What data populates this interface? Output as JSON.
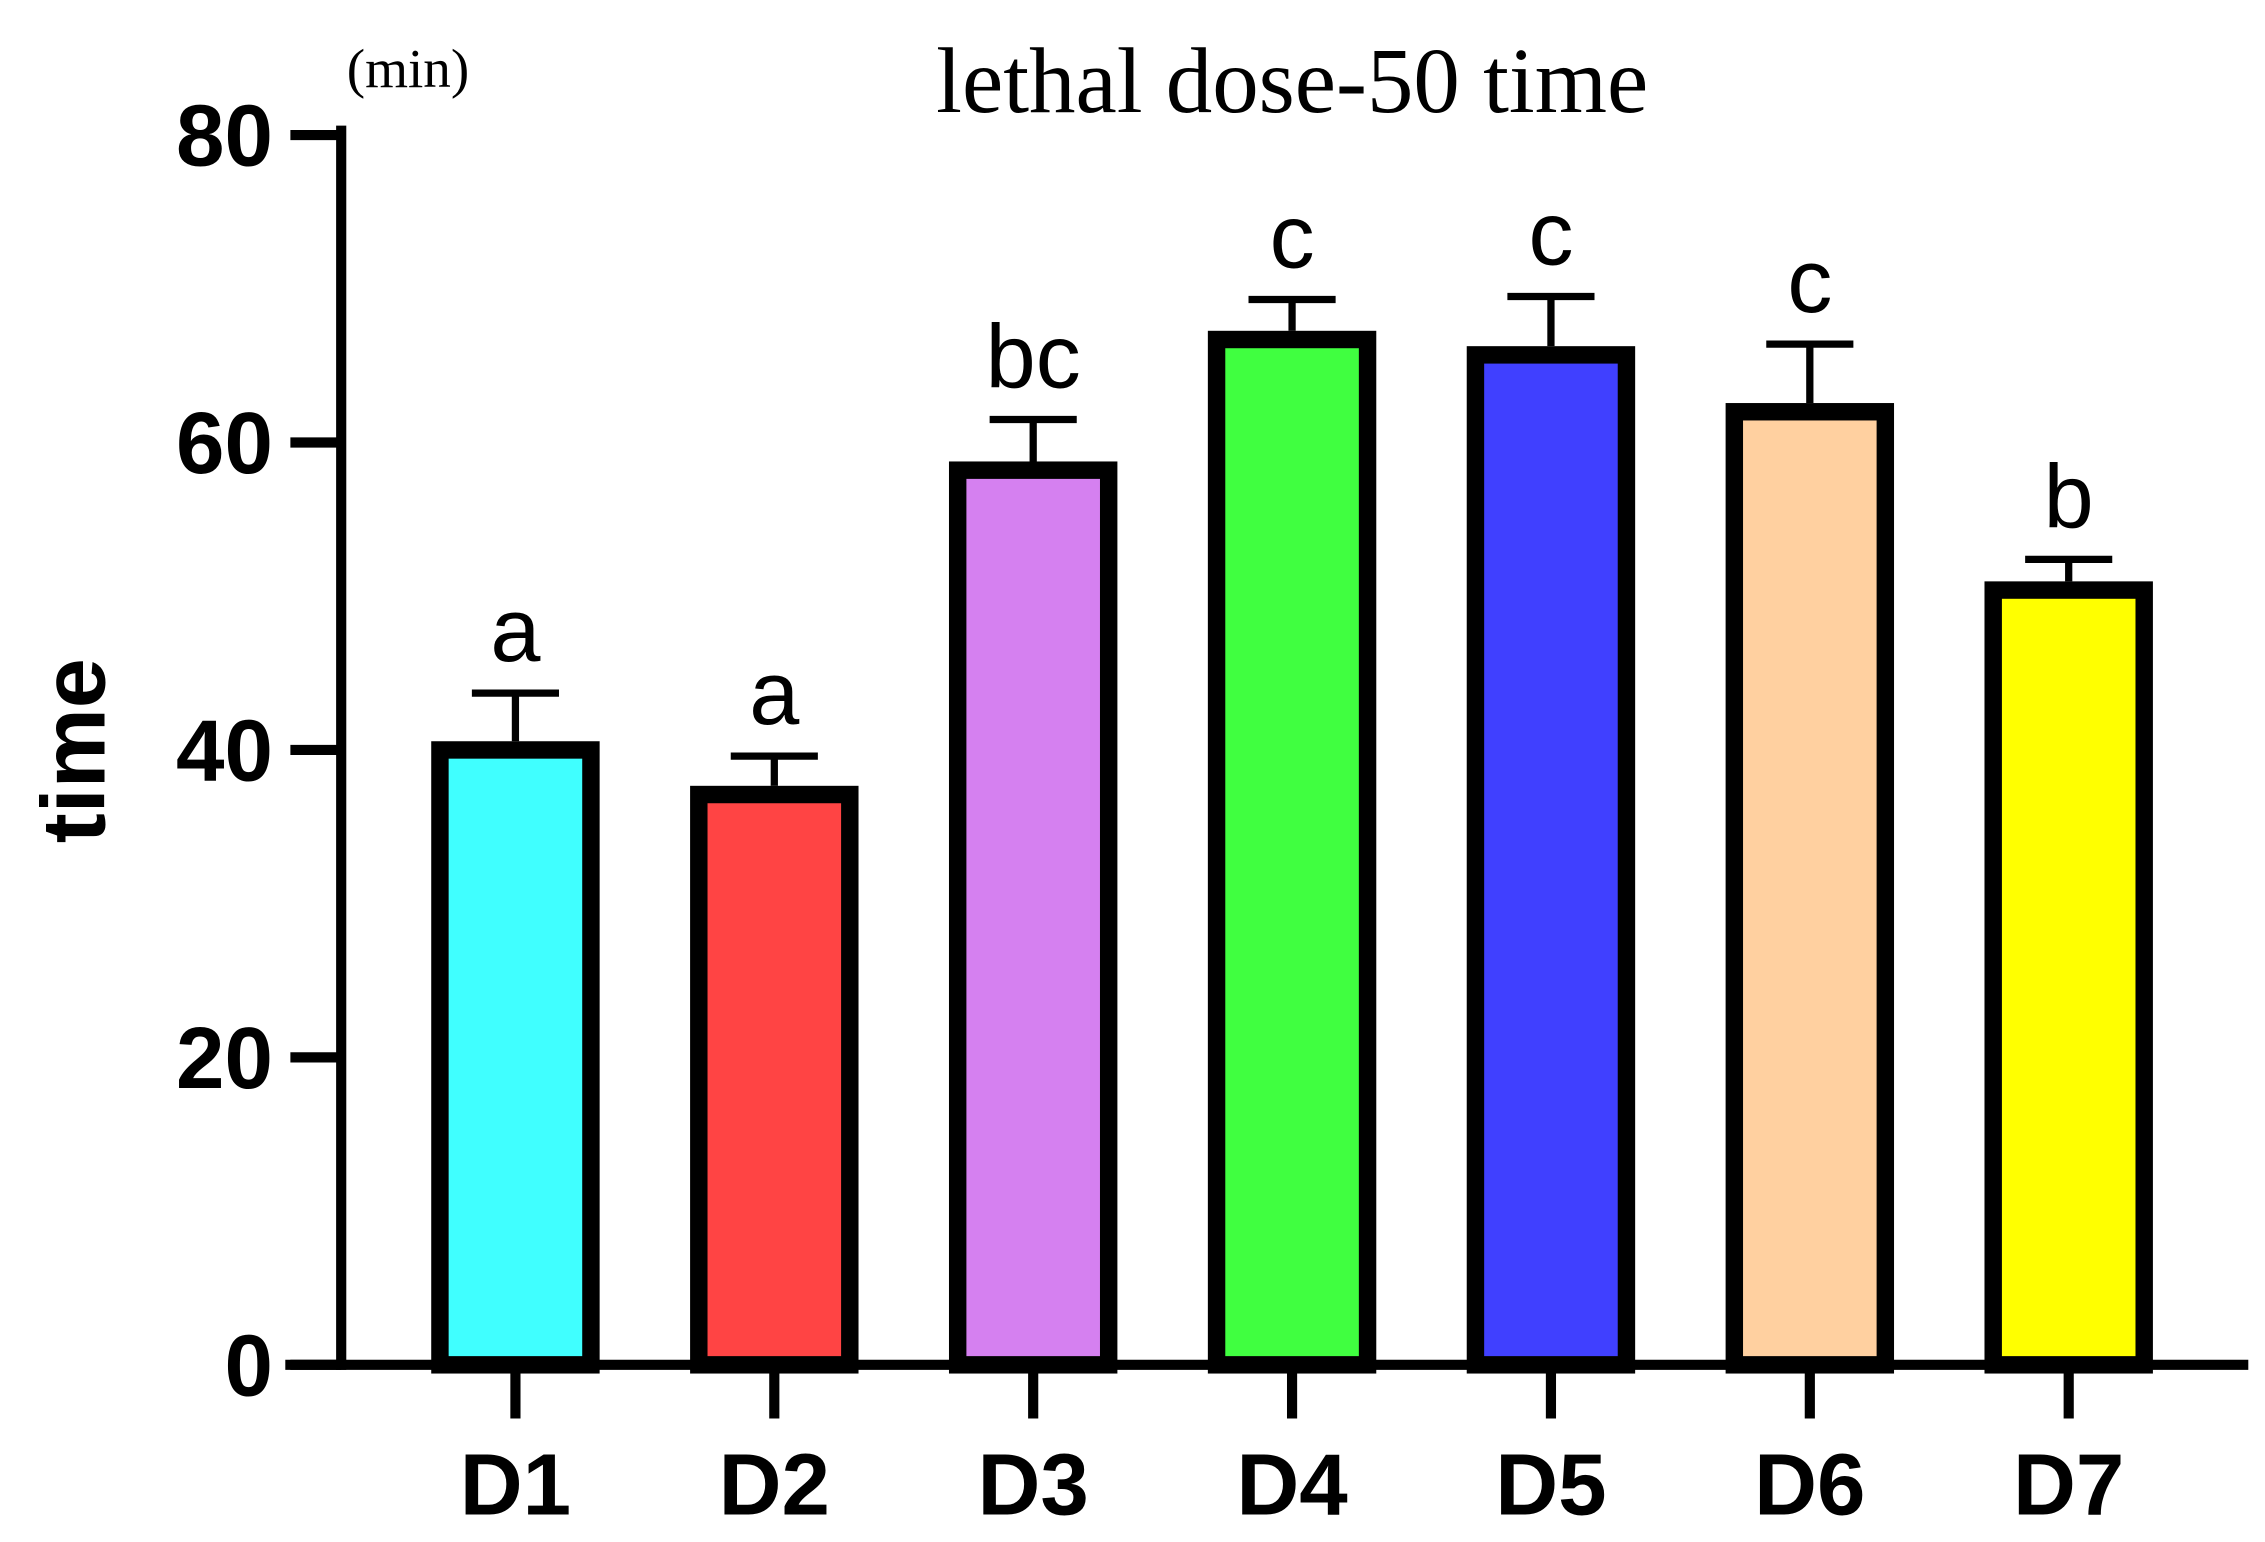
{
  "chart_data": {
    "type": "bar",
    "title": "lethal dose-50 time",
    "xlabel": "",
    "ylabel": "time",
    "yunit": "(min)",
    "ylim": [
      0,
      80
    ],
    "yticks": [
      0,
      20,
      40,
      60,
      80
    ],
    "categories": [
      "D1",
      "D2",
      "D3",
      "D4",
      "D5",
      "D6",
      "D7"
    ],
    "values": [
      40.0,
      37.1,
      58.2,
      66.7,
      65.7,
      62.0,
      50.4
    ],
    "errors": [
      3.7,
      2.5,
      3.3,
      2.6,
      3.8,
      4.4,
      2.0
    ],
    "letters": [
      "a",
      "a",
      "bc",
      "c",
      "c",
      "c",
      "b"
    ],
    "colors": [
      "#40FFFF",
      "#FF4444",
      "#D580F0",
      "#40FF40",
      "#4040FF",
      "#FFD0A0",
      "#FFFF00"
    ],
    "grid": false
  }
}
